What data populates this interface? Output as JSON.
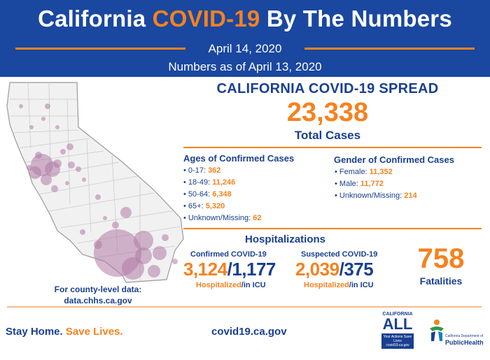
{
  "header": {
    "title_part1": "California",
    "title_accent": "COVID-19",
    "title_part2": "By The Numbers",
    "date": "April 14, 2020",
    "as_of": "Numbers as of April 13, 2020"
  },
  "spread": {
    "title": "CALIFORNIA COVID-19 SPREAD",
    "total_cases": "23,338",
    "total_label": "Total Cases"
  },
  "ages": {
    "heading": "Ages of Confirmed Cases",
    "items": [
      {
        "label": "0-17:",
        "value": "362"
      },
      {
        "label": "18-49:",
        "value": "11,246"
      },
      {
        "label": "50-64:",
        "value": "6,348"
      },
      {
        "label": "65+:",
        "value": "5,320"
      },
      {
        "label": "Unknown/Missing:",
        "value": "62"
      }
    ]
  },
  "gender": {
    "heading": "Gender of Confirmed Cases",
    "items": [
      {
        "label": "Female:",
        "value": "11,352"
      },
      {
        "label": "Male:",
        "value": "11,772"
      },
      {
        "label": "Unknown/Missing:",
        "value": "214"
      }
    ]
  },
  "hospitalizations": {
    "heading": "Hospitalizations",
    "confirmed": {
      "heading": "Confirmed COVID-19",
      "hospitalized": "3,124",
      "icu": "1,177",
      "label_hosp": "Hospitalized",
      "label_icu": "/in ICU"
    },
    "suspected": {
      "heading": "Suspected COVID-19",
      "hospitalized": "2,039",
      "icu": "375",
      "label_hosp": "Hospitalized",
      "label_icu": "/in ICU"
    },
    "slash": "/"
  },
  "fatalities": {
    "value": "758",
    "label": "Fatalities"
  },
  "county_note": {
    "line1": "For county-level data:",
    "line2": "data.chhs.ca.gov"
  },
  "footer": {
    "stay_home": "Stay Home.",
    "save_lives": "Save Lives.",
    "website": "covid19.ca.gov",
    "ca_all_top": "CALIFORNIA",
    "ca_all_big": "ALL",
    "ca_all_box": "Your Actions Save Lives covid19.ca.gov",
    "cdph_small": "California Department of",
    "cdph_big": "PublicHealth"
  },
  "colors": {
    "brand_blue": "#1a47a0",
    "text_blue": "#1a3f91",
    "accent_orange": "#f5821f",
    "bubble": "#b07aa6"
  },
  "icons": {
    "map": "california-county-bubble-map",
    "logo1": "california-all-logo",
    "logo2": "cdph-people-logo"
  }
}
